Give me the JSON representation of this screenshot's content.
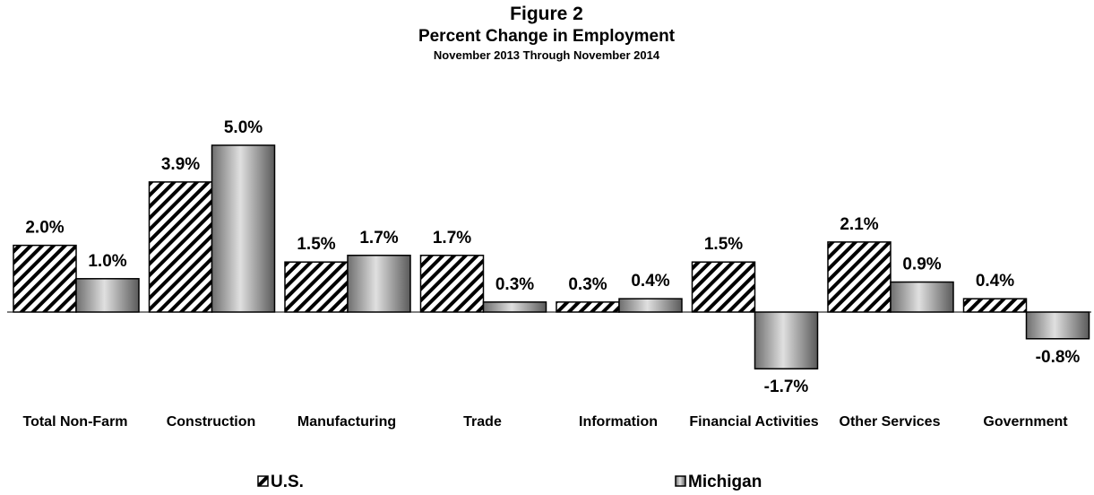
{
  "chart_data": {
    "type": "bar",
    "title": "Figure 2",
    "subtitle": "Percent Change in Employment",
    "subtitle2": "November 2013 Through November 2014",
    "categories": [
      "Total Non-Farm",
      "Construction",
      "Manufacturing",
      "Trade",
      "Information",
      "Financial Activities",
      "Other Services",
      "Government"
    ],
    "series": [
      {
        "name": "U.S.",
        "color": "#000000",
        "pattern": "hatch",
        "values": [
          2.0,
          3.9,
          1.5,
          1.7,
          0.3,
          1.5,
          2.1,
          0.4
        ],
        "value_labels": [
          "2.0%",
          "3.9%",
          "1.5%",
          "1.7%",
          "0.3%",
          "1.5%",
          "2.1%",
          "0.4%"
        ]
      },
      {
        "name": "Michigan",
        "color": "#808080",
        "pattern": "gradient",
        "values": [
          1.0,
          5.0,
          1.7,
          0.3,
          0.4,
          -1.7,
          0.9,
          -0.8
        ],
        "value_labels": [
          "1.0%",
          "5.0%",
          "1.7%",
          "0.3%",
          "0.4%",
          "-1.7%",
          "0.9%",
          "-0.8%"
        ]
      }
    ]
  }
}
